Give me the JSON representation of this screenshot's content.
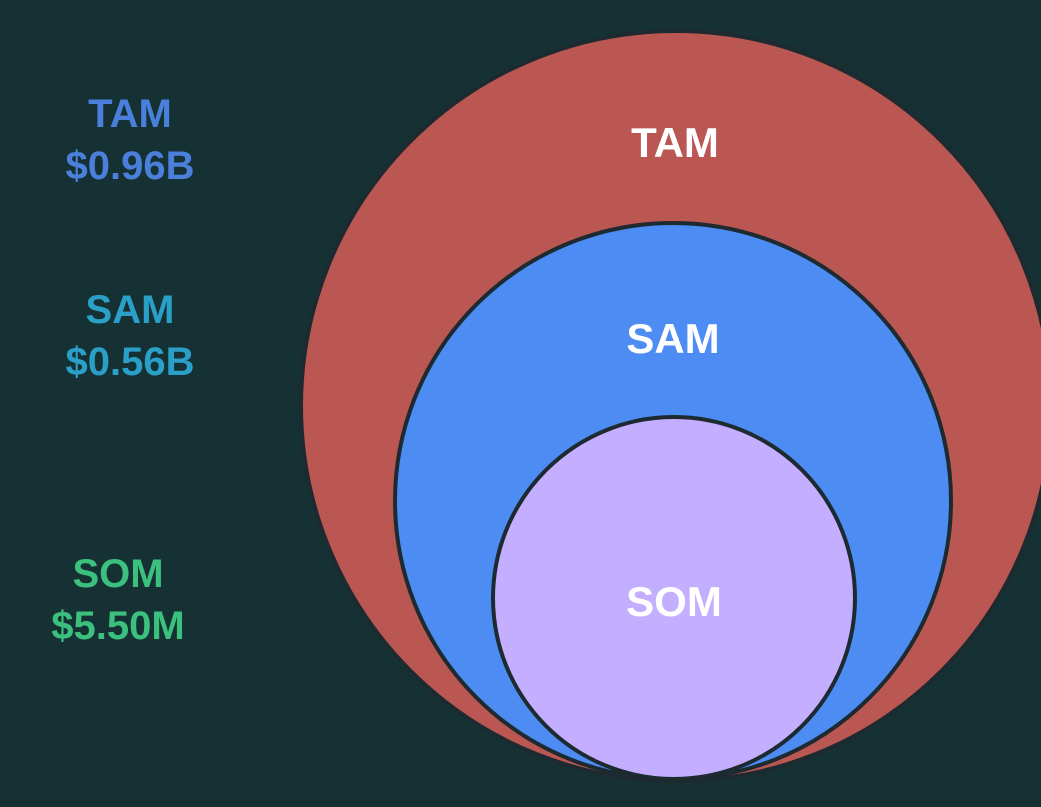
{
  "legend": [
    {
      "label": "TAM",
      "value": "$0.96B",
      "color": "#4a80dc"
    },
    {
      "label": "SAM",
      "value": "$0.56B",
      "color": "#2aa0c8"
    },
    {
      "label": "SOM",
      "value": "$5.50M",
      "color": "#3cc07e"
    }
  ],
  "circles": {
    "tam": {
      "label": "TAM",
      "fill": "#bb5752"
    },
    "sam": {
      "label": "SAM",
      "fill": "#4d8cf2"
    },
    "som": {
      "label": "SOM",
      "fill": "#c3aeff"
    }
  },
  "colors": {
    "background": "#163133",
    "outline": "#1d2a30",
    "label_text": "#ffffff"
  }
}
